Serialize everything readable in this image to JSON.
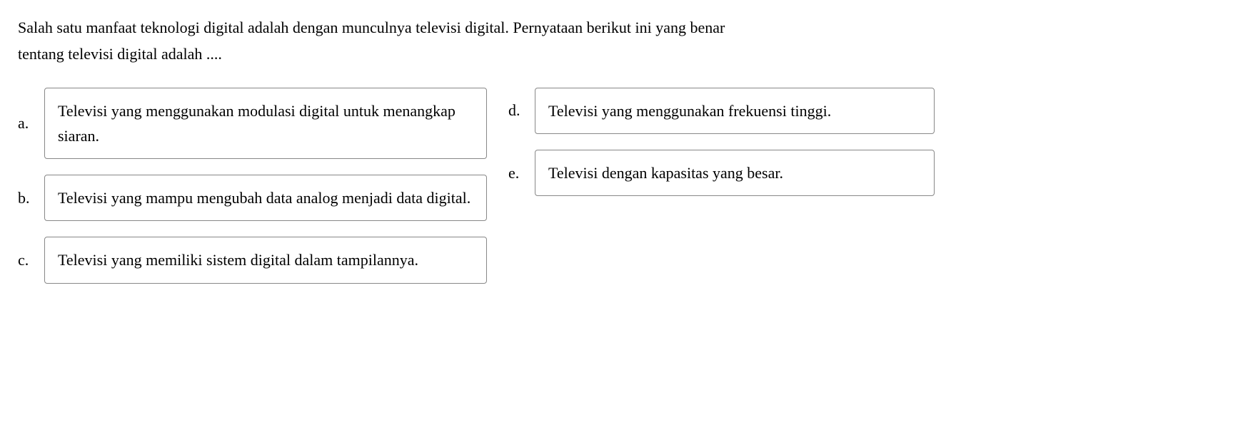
{
  "question": {
    "line1": "Salah satu manfaat teknologi digital adalah dengan   munculnya televisi digital. Pernyataan berikut ini yang benar",
    "line2": "tentang televisi digital adalah ...."
  },
  "options": {
    "left": [
      {
        "label": "a.",
        "text": "Televisi yang menggunakan modulasi digital untuk menangkap siaran."
      },
      {
        "label": "b.",
        "text": "Televisi yang mampu mengubah data analog menjadi data digital."
      },
      {
        "label": "c.",
        "text": "Televisi yang memiliki sistem digital dalam tampilannya."
      }
    ],
    "right": [
      {
        "label": "d.",
        "text": "Televisi yang menggunakan frekuensi tinggi."
      },
      {
        "label": "e.",
        "text": "Televisi dengan kapasitas yang besar."
      }
    ]
  },
  "styling": {
    "background_color": "#ffffff",
    "text_color": "#000000",
    "border_color": "#888888",
    "border_radius": 4,
    "font_size_question": 22,
    "font_size_options": 22,
    "option_box_left_width": 620,
    "option_box_right_width": 560,
    "font_family": "Georgia, Times New Roman, serif"
  }
}
